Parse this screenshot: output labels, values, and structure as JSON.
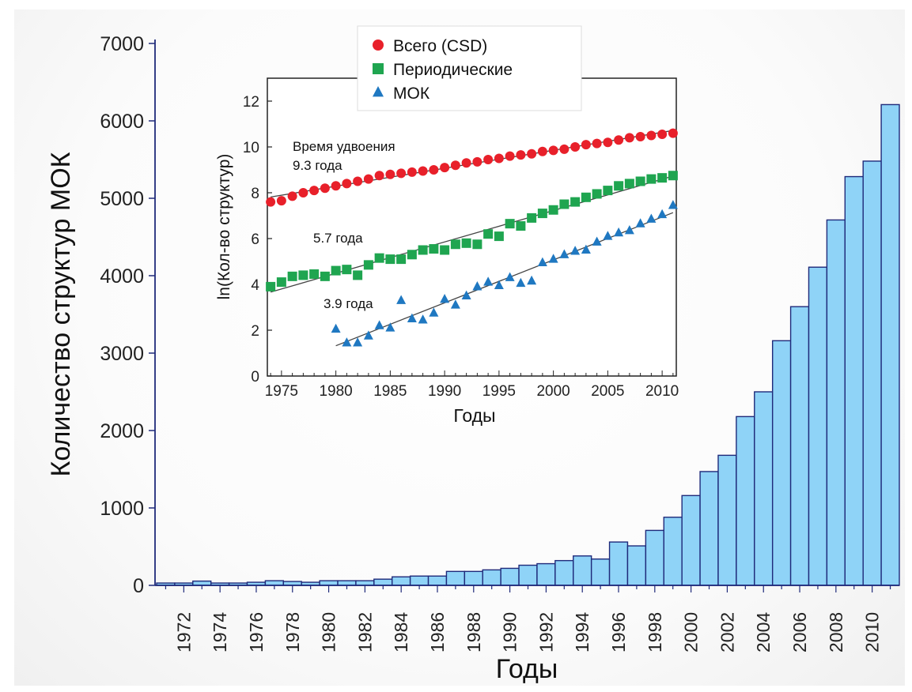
{
  "chart_data": [
    {
      "type": "bar",
      "xlabel": "Годы",
      "ylabel": "Количество структур МОК",
      "ylim": [
        0,
        7000
      ],
      "yticks": [
        0,
        1000,
        2000,
        3000,
        4000,
        5000,
        6000,
        7000
      ],
      "xtick_labels": [
        "1972",
        "1974",
        "1976",
        "1978",
        "1980",
        "1982",
        "1984",
        "1986",
        "1988",
        "1990",
        "1992",
        "1994",
        "1996",
        "1998",
        "2000",
        "2002",
        "2004",
        "2006",
        "2008",
        "2010"
      ],
      "categories": [
        "1971",
        "1972",
        "1973",
        "1974",
        "1975",
        "1976",
        "1977",
        "1978",
        "1979",
        "1980",
        "1981",
        "1982",
        "1983",
        "1984",
        "1985",
        "1986",
        "1987",
        "1988",
        "1989",
        "1990",
        "1991",
        "1992",
        "1993",
        "1994",
        "1995",
        "1996",
        "1997",
        "1998",
        "1999",
        "2000",
        "2001",
        "2002",
        "2003",
        "2004",
        "2005",
        "2006",
        "2007",
        "2008",
        "2009",
        "2010",
        "2011"
      ],
      "values": [
        30,
        30,
        55,
        30,
        30,
        40,
        60,
        50,
        40,
        60,
        60,
        60,
        80,
        110,
        120,
        120,
        180,
        180,
        200,
        220,
        260,
        280,
        320,
        380,
        340,
        560,
        510,
        710,
        880,
        1160,
        1470,
        1680,
        2180,
        2500,
        3160,
        3600,
        4110,
        4720,
        5280,
        5480,
        6210
      ],
      "bar_color": "#8fd3f7",
      "grid": false
    },
    {
      "type": "scatter",
      "xlabel": "Годы",
      "ylabel": "ln(Кол-во структур)",
      "xlim": [
        1974,
        2011
      ],
      "ylim": [
        0,
        13
      ],
      "xticks": [
        1975,
        1980,
        1985,
        1990,
        1995,
        2000,
        2005,
        2010
      ],
      "yticks": [
        0,
        2,
        4,
        6,
        8,
        10,
        12
      ],
      "legend_position": "top",
      "series": [
        {
          "name": "Всего (CSD)",
          "marker": "circle",
          "color": "#e8202a",
          "x": [
            1974,
            1975,
            1976,
            1977,
            1978,
            1979,
            1980,
            1981,
            1982,
            1983,
            1984,
            1985,
            1986,
            1987,
            1988,
            1989,
            1990,
            1991,
            1992,
            1993,
            1994,
            1995,
            1996,
            1997,
            1998,
            1999,
            2000,
            2001,
            2002,
            2003,
            2004,
            2005,
            2006,
            2007,
            2008,
            2009,
            2010,
            2011
          ],
          "y": [
            7.6,
            7.65,
            7.85,
            8.0,
            8.1,
            8.2,
            8.3,
            8.4,
            8.5,
            8.6,
            8.75,
            8.8,
            8.85,
            8.9,
            8.95,
            9.0,
            9.1,
            9.2,
            9.3,
            9.35,
            9.45,
            9.5,
            9.6,
            9.65,
            9.7,
            9.8,
            9.85,
            9.9,
            10.0,
            10.1,
            10.15,
            10.2,
            10.3,
            10.4,
            10.45,
            10.5,
            10.55,
            10.6
          ],
          "annotation": [
            "Время удвоения",
            "9.3 года"
          ]
        },
        {
          "name": "Периодические",
          "marker": "square",
          "color": "#1fa550",
          "x": [
            1974,
            1975,
            1976,
            1977,
            1978,
            1979,
            1980,
            1981,
            1982,
            1983,
            1984,
            1985,
            1986,
            1987,
            1988,
            1989,
            1990,
            1991,
            1992,
            1993,
            1994,
            1995,
            1996,
            1997,
            1998,
            1999,
            2000,
            2001,
            2002,
            2003,
            2004,
            2005,
            2006,
            2007,
            2008,
            2009,
            2010,
            2011
          ],
          "y": [
            3.9,
            4.1,
            4.35,
            4.4,
            4.45,
            4.35,
            4.6,
            4.65,
            4.4,
            4.85,
            5.15,
            5.1,
            5.1,
            5.3,
            5.5,
            5.55,
            5.5,
            5.75,
            5.8,
            5.75,
            6.2,
            6.1,
            6.65,
            6.55,
            6.9,
            7.1,
            7.25,
            7.5,
            7.6,
            7.8,
            7.95,
            8.1,
            8.3,
            8.4,
            8.5,
            8.6,
            8.65,
            8.75
          ],
          "annotation": [
            "5.7 года"
          ]
        },
        {
          "name": "МОК",
          "marker": "triangle",
          "color": "#1f78c1",
          "x": [
            1980,
            1981,
            1982,
            1983,
            1984,
            1985,
            1986,
            1987,
            1988,
            1989,
            1990,
            1991,
            1992,
            1993,
            1994,
            1995,
            1996,
            1997,
            1998,
            1999,
            2000,
            2001,
            2002,
            2003,
            2004,
            2005,
            2006,
            2007,
            2008,
            2009,
            2010,
            2011
          ],
          "y": [
            2.05,
            1.45,
            1.45,
            1.75,
            2.2,
            2.1,
            3.3,
            2.5,
            2.45,
            2.75,
            3.35,
            3.1,
            3.5,
            3.9,
            4.1,
            3.95,
            4.3,
            4.05,
            4.15,
            4.95,
            5.1,
            5.3,
            5.45,
            5.5,
            5.85,
            6.1,
            6.25,
            6.35,
            6.65,
            6.85,
            7.05,
            7.45
          ],
          "annotation": [
            "3.9 года"
          ]
        }
      ]
    }
  ]
}
